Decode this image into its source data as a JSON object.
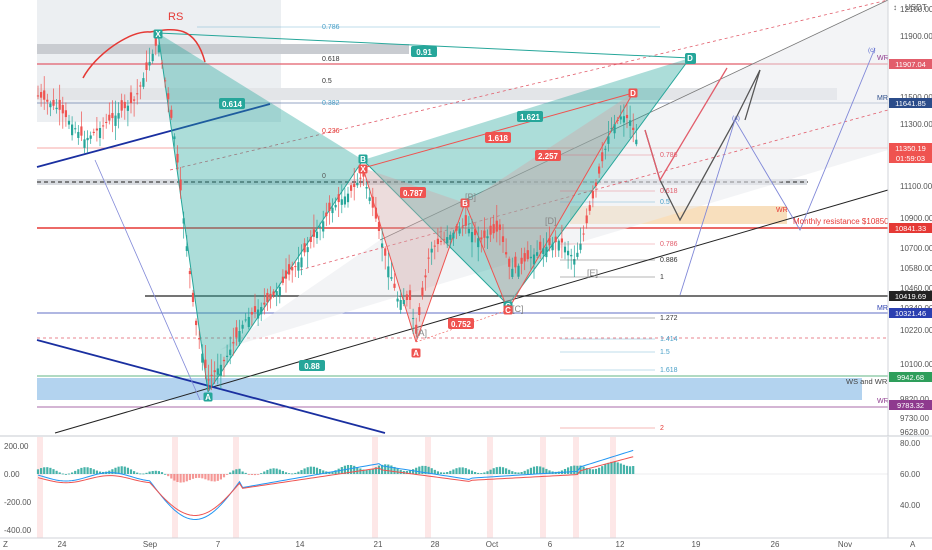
{
  "chart_data": {
    "type": "candlestick",
    "currency_label": "USDT",
    "price_axis": {
      "ticks": [
        12100,
        11900,
        11700,
        11500,
        11300,
        11100,
        10900,
        10700,
        10580,
        10460,
        10340,
        10220,
        10100,
        9980,
        9820,
        9730,
        9628
      ]
    },
    "date_axis": {
      "ticks": [
        "24",
        "Sep",
        "7",
        "14",
        "21",
        "28",
        "Oct",
        "6",
        "12",
        "19",
        "26",
        "Nov"
      ]
    },
    "price_tags": [
      {
        "text": "11907.04",
        "color": "#e25d6b"
      },
      {
        "text": "11641.85",
        "color": "#2b4c8a"
      },
      {
        "text": "11350.19",
        "color": "#ef5350"
      },
      {
        "text": "01:59:03",
        "color": "#ef5350"
      },
      {
        "text": "10841.33",
        "color": "#e53935"
      },
      {
        "text": "10419.69",
        "color": "#222222"
      },
      {
        "text": "10321.46",
        "color": "#2b3fb0"
      },
      {
        "text": "9942.68",
        "color": "#2e9e5b"
      },
      {
        "text": "9783.32",
        "color": "#8e3a8e"
      }
    ],
    "fib_levels": [
      "0.786",
      "0.618",
      "0.5",
      "0.382",
      "0.236",
      "0",
      "0.786",
      "0.618",
      "0.5",
      "0.786",
      "0.886",
      "1",
      "1.272",
      "1.414",
      "1.5",
      "1.618",
      "2"
    ],
    "annotations": {
      "rs": "RS",
      "monthly_resistance": "Monthly resistance $10850",
      "ws_wr": "WS and WR",
      "wr": "WR",
      "mr": "MR",
      "bracket_b": "[B]",
      "bracket_d": "[D]",
      "bracket_e": "[E]",
      "bracket_c": "[C]",
      "bracket_a": "[A]",
      "small_c": "(c)",
      "small_a": "(a)"
    },
    "pattern_points": [
      {
        "label": "X",
        "color": "#26a69a"
      },
      {
        "label": "A",
        "color": "#26a69a"
      },
      {
        "label": "B",
        "color": "#26a69a"
      },
      {
        "label": "C",
        "color": "#26a69a"
      },
      {
        "label": "D",
        "color": "#26a69a"
      },
      {
        "label": "X",
        "color": "#ef5350"
      },
      {
        "label": "A",
        "color": "#ef5350"
      },
      {
        "label": "B",
        "color": "#ef5350"
      },
      {
        "label": "C",
        "color": "#ef5350"
      },
      {
        "label": "D",
        "color": "#ef5350"
      }
    ],
    "ratios": [
      "0.91",
      "0.614",
      "0.88",
      "1.621",
      "1.618",
      "2.257",
      "0.787",
      "0.752"
    ],
    "oscillator": {
      "type": "macd",
      "ticks": [
        "200.00",
        "0.00",
        "-200.00",
        "-400.00"
      ],
      "right_ticks": [
        "80.00",
        "60.00",
        "40.00"
      ]
    },
    "colors": {
      "bull": "#26a69a",
      "bear": "#ef5350",
      "pattern_green": "#26a69a",
      "pattern_red": "#ef5350"
    }
  },
  "corner_labels": {
    "bottom_left": "Z",
    "bottom_right": "A"
  }
}
